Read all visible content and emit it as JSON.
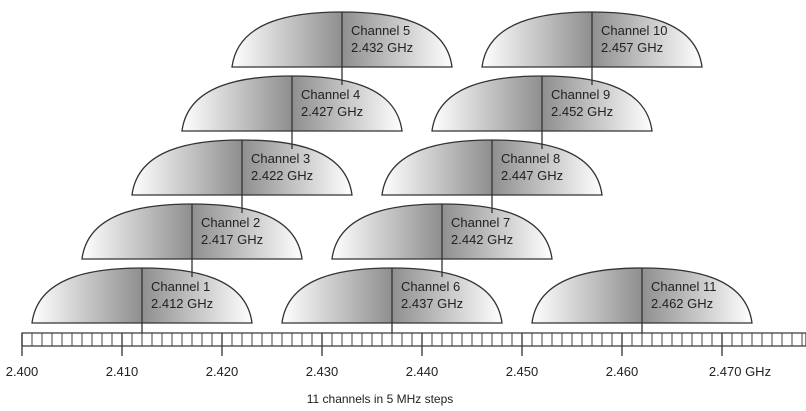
{
  "channels": [
    {
      "name": "Channel 1",
      "freq": "2.412 GHz"
    },
    {
      "name": "Channel 2",
      "freq": "2.417 GHz"
    },
    {
      "name": "Channel 3",
      "freq": "2.422 GHz"
    },
    {
      "name": "Channel 4",
      "freq": "2.427 GHz"
    },
    {
      "name": "Channel 5",
      "freq": "2.432 GHz"
    },
    {
      "name": "Channel 6",
      "freq": "2.437 GHz"
    },
    {
      "name": "Channel 7",
      "freq": "2.442 GHz"
    },
    {
      "name": "Channel 8",
      "freq": "2.447 GHz"
    },
    {
      "name": "Channel 9",
      "freq": "2.452 GHz"
    },
    {
      "name": "Channel 10",
      "freq": "2.457 GHz"
    },
    {
      "name": "Channel 11",
      "freq": "2.462 GHz"
    }
  ],
  "axis": {
    "ticks": [
      "2.400",
      "2.410",
      "2.420",
      "2.430",
      "2.440",
      "2.450",
      "2.460",
      "2.470 GHz"
    ]
  },
  "caption": "11 channels in 5 MHz steps"
}
